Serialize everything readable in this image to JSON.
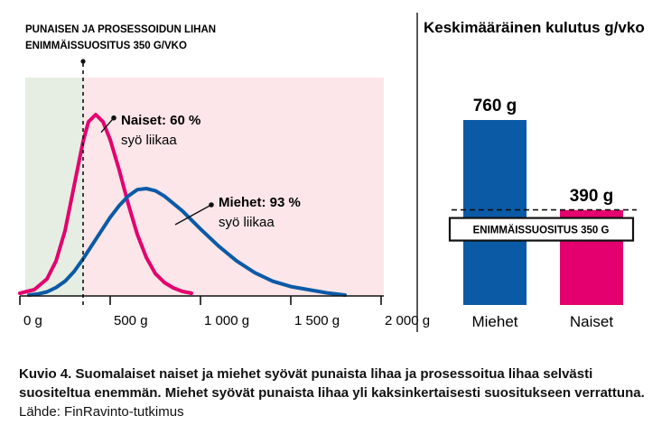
{
  "chart_data": [
    {
      "type": "area",
      "title": "PUNAISEN JA PROSESSOIDUN LIHAN ENIMMÄISSUOSITUS 350 G/VKO",
      "title_lines": [
        "PUNAISEN JA PROSESSOIDUN LIHAN",
        "ENIMMÄISSUOSITUS 350 G/VKO"
      ],
      "xlabel": "",
      "ylabel": "",
      "xlim": [
        0,
        2000
      ],
      "x_ticks": [
        0,
        500,
        1000,
        1500,
        2000
      ],
      "x_tick_labels": [
        "0 g",
        "500 g",
        "1 000 g",
        "1 500 g",
        "2 000 g"
      ],
      "threshold_x": 350,
      "series": [
        {
          "name": "Naiset",
          "color": "#e4006e",
          "annotation_bold": "Naiset: 60 %",
          "annotation_text": "syö liikaa",
          "marker_x": 520,
          "x": [
            0,
            80,
            150,
            200,
            250,
            300,
            350,
            380,
            420,
            460,
            500,
            550,
            600,
            650,
            700,
            750,
            800,
            850,
            900,
            950
          ],
          "y": [
            0,
            0.02,
            0.08,
            0.18,
            0.35,
            0.6,
            0.85,
            0.96,
            1.0,
            0.96,
            0.86,
            0.69,
            0.5,
            0.33,
            0.2,
            0.11,
            0.06,
            0.03,
            0.01,
            0
          ]
        },
        {
          "name": "Miehet",
          "color": "#0b5aa6",
          "annotation_bold": "Miehet: 93 %",
          "annotation_text": "syö liikaa",
          "marker_x": 1060,
          "x": [
            50,
            100,
            150,
            200,
            250,
            300,
            350,
            400,
            450,
            500,
            550,
            600,
            650,
            700,
            750,
            800,
            900,
            1000,
            1100,
            1200,
            1300,
            1400,
            1500,
            1600,
            1700,
            1800
          ],
          "y": [
            0,
            0.01,
            0.03,
            0.07,
            0.13,
            0.22,
            0.34,
            0.47,
            0.6,
            0.73,
            0.84,
            0.93,
            0.99,
            1.0,
            0.98,
            0.93,
            0.79,
            0.62,
            0.46,
            0.32,
            0.21,
            0.13,
            0.08,
            0.05,
            0.02,
            0
          ]
        }
      ]
    },
    {
      "type": "bar",
      "title": "Keskimääräinen kulutus g/vko",
      "categories": [
        "Miehet",
        "Naiset"
      ],
      "values": [
        760,
        390
      ],
      "value_labels": [
        "760 g",
        "390 g"
      ],
      "colors": [
        "#0b5aa6",
        "#e4006e"
      ],
      "ylim": [
        0,
        800
      ],
      "reference_value": 350,
      "reference_label": "ENIMMÄISSUOSITUS 350 G"
    }
  ],
  "caption": {
    "label": "Kuvio 4.",
    "bold_text": "Suomalaiset naiset ja miehet syövät punaista lihaa ja prosessoitua lihaa selvästi suositeltua enemmän. Miehet syövät punaista lihaa yli kaksinkertaisesti suositukseen verrattuna.",
    "source": "Lähde: FinRavinto-tutkimus"
  },
  "colors": {
    "green_zone": "#e6eee3",
    "pink_zone": "#fce6e9",
    "axis": "#111111",
    "divider": "#111111"
  }
}
